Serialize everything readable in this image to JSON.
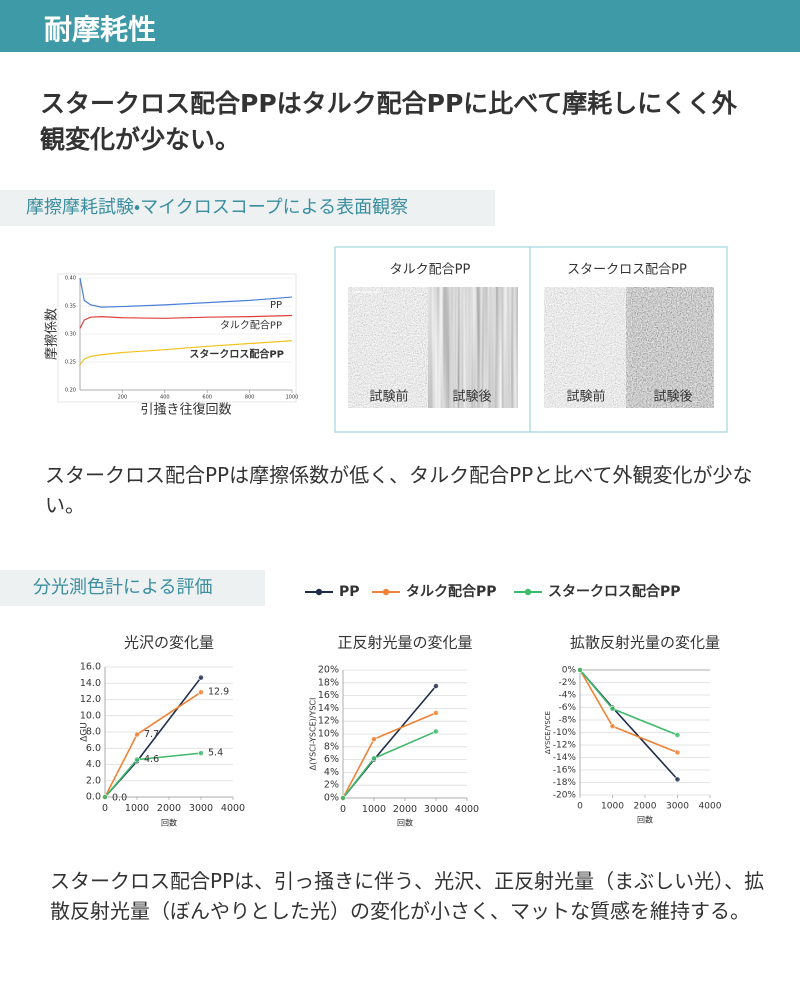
{
  "header": {
    "title": "耐摩耗性"
  },
  "headline": "スタークロス配合PPはタルク配合PPに比べて摩耗しにくく外観変化が少ない。",
  "sections": [
    {
      "title": "摩擦摩耗試験・マイクロスコープによる表面観察",
      "microscope": [
        {
          "name": "タルク配合PP",
          "before": "試験前",
          "after": "試験後"
        },
        {
          "name": "スタークロス配合PP",
          "before": "試験前",
          "after": "試験後"
        }
      ],
      "caption": "スタークロス配合PPは摩擦係数が低く、タルク配合PPと比べて外観変化が少ない。"
    },
    {
      "title": "分光測色計による評価",
      "caption": "スタークロス配合PPは、引っ掻きに伴う、光沢、正反射光量（まぶしい光）、拡散反射光量（ぼんやりとした光）の変化が小さく、マットな質感を維持する。"
    }
  ],
  "chart_data": [
    {
      "type": "line",
      "x_label": "引掻き往復回数",
      "y_label": "摩擦係数",
      "x": [
        0,
        20,
        50,
        100,
        200,
        400,
        600,
        800,
        1000
      ],
      "xlim": [
        0,
        1000
      ],
      "xticks": [
        200,
        400,
        600,
        800,
        1000
      ],
      "ylim": [
        0.2,
        0.4
      ],
      "yticks": [
        {
          "value": 0.2,
          "label": "0.20"
        },
        {
          "value": 0.25,
          "label": "0.25"
        },
        {
          "value": 0.3,
          "label": "0.30"
        },
        {
          "value": 0.35,
          "label": "0.35"
        },
        {
          "value": 0.4,
          "label": "0.40"
        }
      ],
      "grid": true,
      "series": [
        {
          "name": "PP",
          "color": "#4a80d8",
          "values": [
            0.4,
            0.36,
            0.352,
            0.348,
            0.349,
            0.352,
            0.356,
            0.36,
            0.366
          ]
        },
        {
          "name": "タルク配合PP",
          "color": "#e0403c",
          "values": [
            0.31,
            0.325,
            0.33,
            0.331,
            0.329,
            0.328,
            0.33,
            0.331,
            0.333
          ]
        },
        {
          "name": "スタークロス配合PP",
          "color": "#f2c21c",
          "values": [
            0.245,
            0.255,
            0.26,
            0.263,
            0.267,
            0.272,
            0.278,
            0.283,
            0.288
          ]
        }
      ]
    },
    {
      "type": "line",
      "title": "光沢の変化量",
      "x_label": "回数",
      "y_label": "ΔGU",
      "x": [
        0,
        1000,
        3000
      ],
      "xlim": [
        0,
        4000
      ],
      "xticks": [
        0,
        1000,
        2000,
        3000,
        4000
      ],
      "ylim": [
        0,
        16
      ],
      "yticks": [
        {
          "value": 0,
          "label": "0.0"
        },
        {
          "value": 2,
          "label": "2.0"
        },
        {
          "value": 4,
          "label": "4.0"
        },
        {
          "value": 6,
          "label": "6.0"
        },
        {
          "value": 8,
          "label": "8.0"
        },
        {
          "value": 10,
          "label": "10.0"
        },
        {
          "value": 12,
          "label": "12.0"
        },
        {
          "value": 14,
          "label": "14.0"
        },
        {
          "value": 16,
          "label": "16.0"
        }
      ],
      "grid": true,
      "series": [
        {
          "name": "PP",
          "color": "#1f2d4d",
          "values": [
            0,
            4.4,
            14.7
          ]
        },
        {
          "name": "タルク配合PP",
          "color": "#ef8236",
          "values": [
            0,
            7.7,
            12.9
          ],
          "value_labels": [
            null,
            "7.7",
            "12.9"
          ]
        },
        {
          "name": "スタークロス配合PP",
          "color": "#3dba6a",
          "values": [
            0,
            4.6,
            5.4
          ],
          "value_labels": [
            "0.0",
            "4.6",
            "5.4"
          ]
        }
      ]
    },
    {
      "type": "line",
      "title": "正反射光量の変化量",
      "x_label": "回数",
      "y_label": "Δ(YSCI-YSCE)/YSCI",
      "x": [
        0,
        1000,
        3000
      ],
      "xlim": [
        0,
        4000
      ],
      "xticks": [
        0,
        1000,
        2000,
        3000,
        4000
      ],
      "ylim": [
        0,
        20
      ],
      "yticks": [
        {
          "value": 0,
          "label": "0%"
        },
        {
          "value": 2,
          "label": "2%"
        },
        {
          "value": 4,
          "label": "4%"
        },
        {
          "value": 6,
          "label": "6%"
        },
        {
          "value": 8,
          "label": "8%"
        },
        {
          "value": 10,
          "label": "10%"
        },
        {
          "value": 12,
          "label": "12%"
        },
        {
          "value": 14,
          "label": "14%"
        },
        {
          "value": 16,
          "label": "16%"
        },
        {
          "value": 18,
          "label": "18%"
        },
        {
          "value": 20,
          "label": "20%"
        }
      ],
      "grid": true,
      "series": [
        {
          "color": "#1f2d4d",
          "values": [
            0,
            6.0,
            17.5
          ]
        },
        {
          "color": "#ef8236",
          "values": [
            0,
            9.2,
            13.3
          ]
        },
        {
          "color": "#3dba6a",
          "values": [
            0,
            6.2,
            10.4
          ]
        }
      ]
    },
    {
      "type": "line",
      "title": "拡散反射光量の変化量",
      "x_label": "回数",
      "y_label": "ΔYSCE/YSCE",
      "x": [
        0,
        1000,
        3000
      ],
      "xlim": [
        0,
        4000
      ],
      "xticks": [
        0,
        1000,
        2000,
        3000,
        4000
      ],
      "ylim": [
        -20,
        0
      ],
      "yticks": [
        {
          "value": 0,
          "label": "0%"
        },
        {
          "value": -2,
          "label": "-2%"
        },
        {
          "value": -4,
          "label": "-4%"
        },
        {
          "value": -6,
          "label": "-6%"
        },
        {
          "value": -8,
          "label": "-8%"
        },
        {
          "value": -10,
          "label": "-10%"
        },
        {
          "value": -12,
          "label": "-12%"
        },
        {
          "value": -14,
          "label": "-14%"
        },
        {
          "value": -16,
          "label": "-16%"
        },
        {
          "value": -18,
          "label": "-18%"
        },
        {
          "value": -20,
          "label": "-20%"
        }
      ],
      "grid": true,
      "series": [
        {
          "color": "#1f2d4d",
          "values": [
            0,
            -6.0,
            -17.5
          ]
        },
        {
          "color": "#ef8236",
          "values": [
            0,
            -9.0,
            -13.2
          ]
        },
        {
          "color": "#3dba6a",
          "values": [
            0,
            -6.2,
            -10.4
          ]
        }
      ]
    }
  ]
}
